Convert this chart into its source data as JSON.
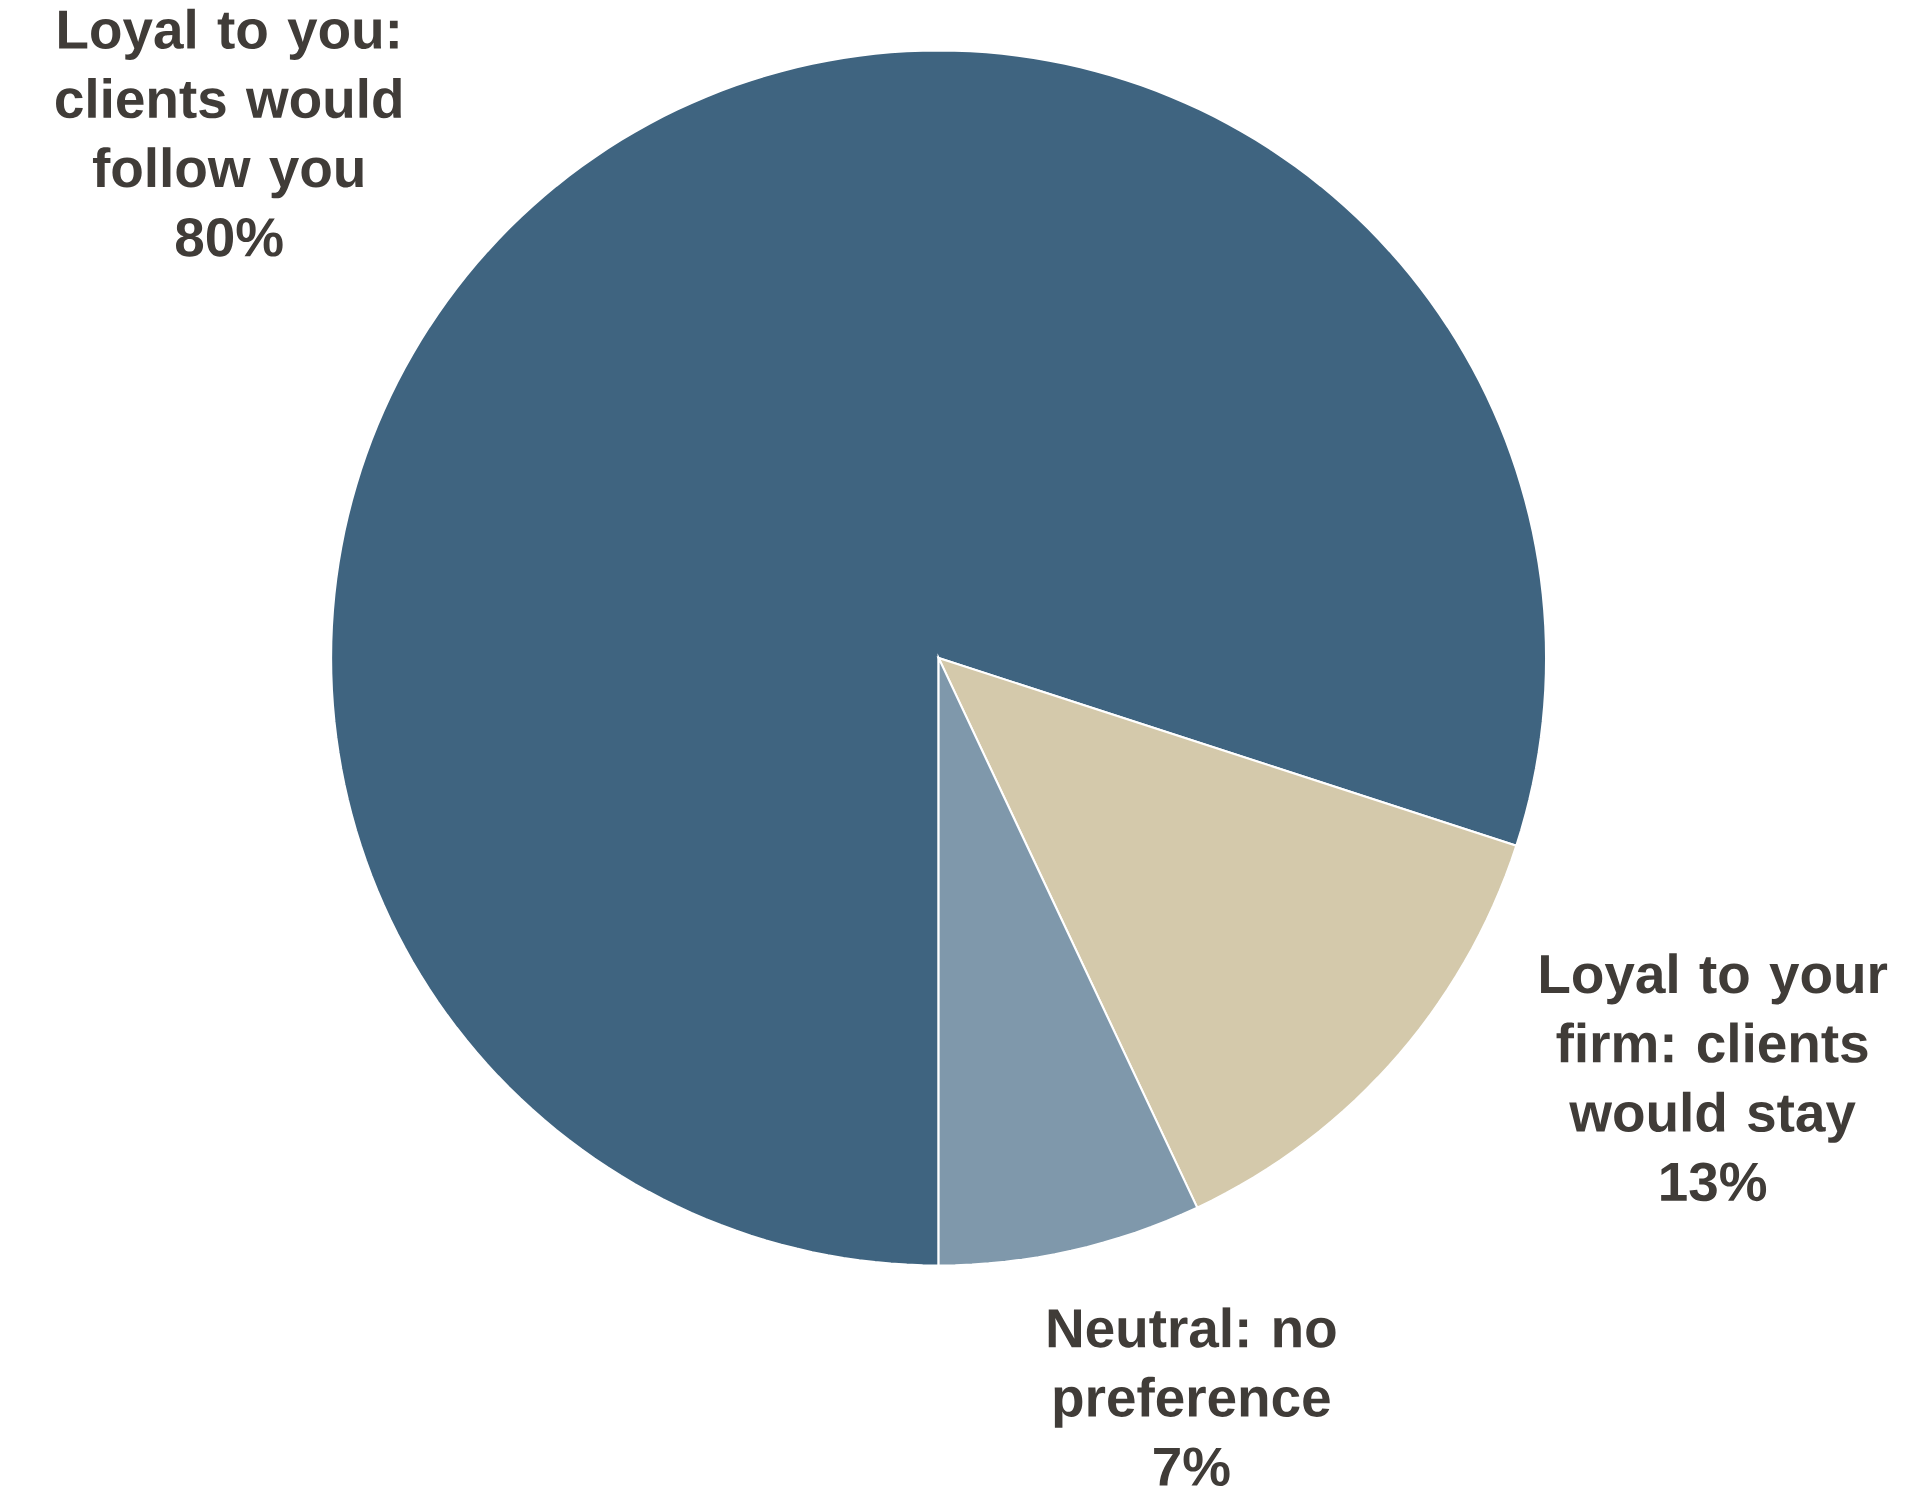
{
  "chart_data": {
    "type": "pie",
    "categories": [
      "Loyal to you: clients would follow you",
      "Loyal to your firm: clients would stay",
      "Neutral: no preference"
    ],
    "values": [
      80,
      13,
      7
    ],
    "value_labels": [
      "80%",
      "13%",
      "7%"
    ],
    "colors": [
      "#3f6480",
      "#d4c9ab",
      "#7f98ab"
    ]
  }
}
